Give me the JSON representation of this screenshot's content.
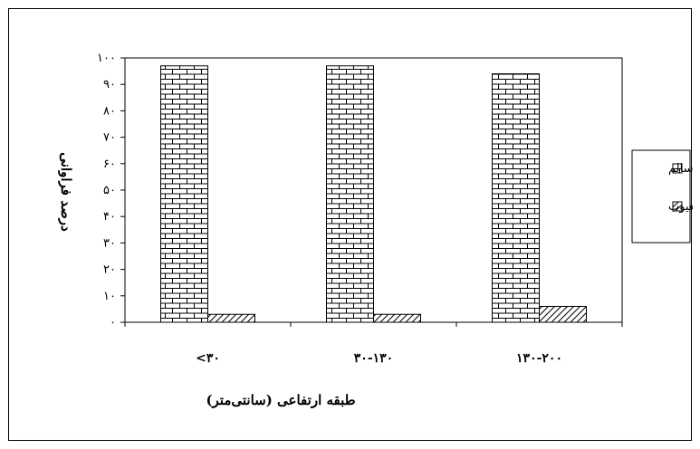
{
  "chart_data": {
    "type": "bar",
    "categories": [
      "<۳۰",
      "۳۰-۱۳۰",
      "۱۳۰-۲۰۰"
    ],
    "series": [
      {
        "name": "سالم",
        "values": [
          97,
          97,
          94
        ],
        "pattern": "brick"
      },
      {
        "name": "معیوب",
        "values": [
          3,
          3,
          6
        ],
        "pattern": "diagonal"
      }
    ],
    "ylim": [
      0,
      100
    ],
    "yticks": [
      0,
      10,
      20,
      30,
      40,
      50,
      60,
      70,
      80,
      90,
      100
    ],
    "ytick_labels": [
      "۰",
      "۱۰",
      "۲۰",
      "۳۰",
      "۴۰",
      "۵۰",
      "۶۰",
      "۷۰",
      "۸۰",
      "۹۰",
      "۱۰۰"
    ],
    "xlabel": "طبقه ارتفاعی (سانتی‌متر)",
    "ylabel": "درصد فراوانی",
    "grid": false,
    "legend_position": "right",
    "colors": {
      "background": "#ffffff",
      "ink": "#000000"
    }
  }
}
